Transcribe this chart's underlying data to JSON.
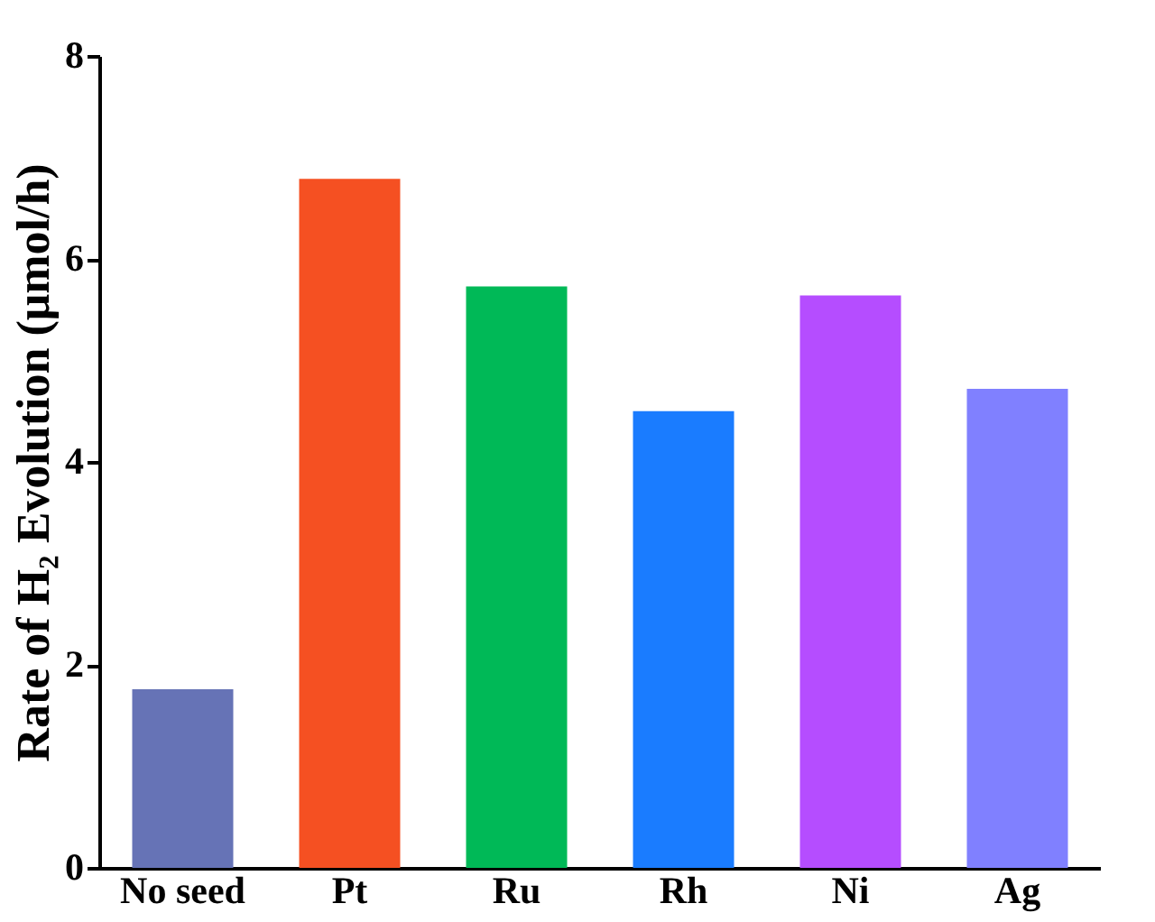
{
  "chart_data": {
    "type": "bar",
    "ylabel": "Rate of H₂ Evolution (μmol/h)",
    "categories": [
      "No seed",
      "Pt",
      "Ru",
      "Rh",
      "Ni",
      "Ag"
    ],
    "values": [
      1.76,
      6.79,
      5.73,
      4.5,
      5.64,
      4.72
    ],
    "colors": [
      "#6673b6",
      "#f55022",
      "#00b957",
      "#1a7cff",
      "#b54dff",
      "#8080ff"
    ],
    "ylim": [
      0,
      8
    ],
    "yticks": [
      0,
      2,
      4,
      6,
      8
    ]
  }
}
